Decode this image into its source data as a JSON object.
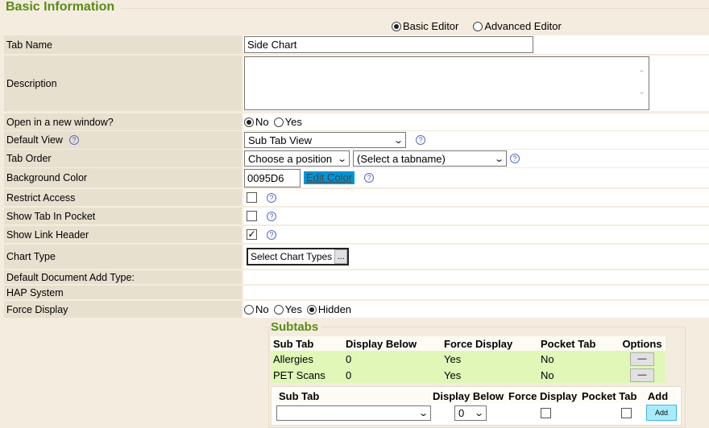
{
  "section_title": "Basic Information",
  "editor_mode": {
    "basic": "Basic Editor",
    "advanced": "Advanced Editor",
    "selected": "basic"
  },
  "fields": {
    "tab_name": {
      "label": "Tab Name",
      "value": "Side Chart"
    },
    "description": {
      "label": "Description",
      "value": ""
    },
    "open_new_window": {
      "label": "Open in a new window?",
      "options": [
        "No",
        "Yes"
      ],
      "selected": "No"
    },
    "default_view": {
      "label": "Default View",
      "value": "Sub Tab View"
    },
    "tab_order": {
      "label": "Tab Order",
      "position": "Choose a position",
      "tabname": "(Select a tabname)"
    },
    "background_color": {
      "label": "Background Color",
      "value": "0095D6",
      "edit_label": "Edit Color",
      "swatch": "#0095D6"
    },
    "restrict_access": {
      "label": "Restrict Access",
      "checked": false
    },
    "show_tab_in_pocket": {
      "label": "Show Tab In Pocket",
      "checked": false
    },
    "show_link_header": {
      "label": "Show Link Header",
      "checked": true
    },
    "chart_type": {
      "label": "Chart Type",
      "button": "Select Chart Types",
      "ellipsis": "..."
    },
    "default_document_add_type": {
      "label": "Default Document Add Type:"
    },
    "hap_system": {
      "label": "HAP System"
    },
    "force_display": {
      "label": "Force Display",
      "options": [
        "No",
        "Yes",
        "Hidden"
      ],
      "selected": "Hidden"
    }
  },
  "subtabs": {
    "title": "Subtabs",
    "columns": [
      "Sub Tab",
      "Display Below",
      "Force Display",
      "Pocket Tab",
      "Options"
    ],
    "rows": [
      {
        "sub_tab": "Allergies",
        "display_below": "0",
        "force_display": "Yes",
        "pocket_tab": "No",
        "remove": "—"
      },
      {
        "sub_tab": "PET Scans",
        "display_below": "0",
        "force_display": "Yes",
        "pocket_tab": "No",
        "remove": "—"
      }
    ],
    "add_form": {
      "columns": [
        "Sub Tab",
        "Display Below",
        "Force Display",
        "Pocket Tab",
        "Add"
      ],
      "sub_tab_value": "",
      "display_below_value": "0",
      "add_button": "Add"
    }
  }
}
